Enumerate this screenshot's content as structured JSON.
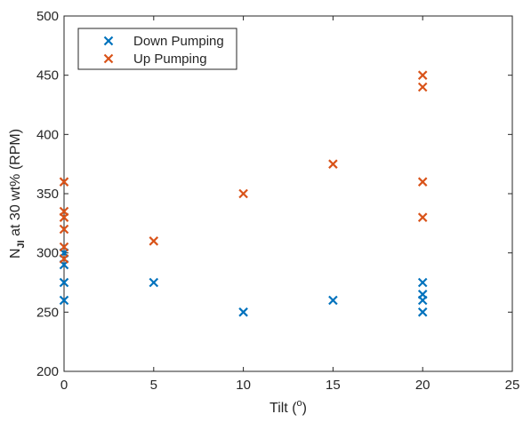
{
  "chart_data": {
    "type": "scatter",
    "title": "",
    "xlabel": "Tilt (°)",
    "ylabel": "N_JI at 30 wt% (RPM)",
    "ylabel_parts": {
      "main": "N",
      "subscript": "JI",
      "rest": " at 30 wt% (RPM)"
    },
    "xlabel_parts": {
      "main": "Tilt (",
      "superscript": "o",
      "rest": ")"
    },
    "xlim": [
      0,
      25
    ],
    "ylim": [
      200,
      500
    ],
    "xticks": [
      0,
      5,
      10,
      15,
      20,
      25
    ],
    "yticks": [
      200,
      250,
      300,
      350,
      400,
      450,
      500
    ],
    "grid": false,
    "legend_position": "top-left",
    "marker": "x",
    "series": [
      {
        "name": "Down Pumping",
        "color": "#0072BD",
        "points": [
          {
            "x": 0,
            "y": 260
          },
          {
            "x": 0,
            "y": 275
          },
          {
            "x": 0,
            "y": 290
          },
          {
            "x": 0,
            "y": 300
          },
          {
            "x": 5,
            "y": 275
          },
          {
            "x": 10,
            "y": 250
          },
          {
            "x": 15,
            "y": 260
          },
          {
            "x": 20,
            "y": 250
          },
          {
            "x": 20,
            "y": 260
          },
          {
            "x": 20,
            "y": 265
          },
          {
            "x": 20,
            "y": 275
          }
        ]
      },
      {
        "name": "Up Pumping",
        "color": "#D95319",
        "points": [
          {
            "x": 0,
            "y": 295
          },
          {
            "x": 0,
            "y": 305
          },
          {
            "x": 0,
            "y": 320
          },
          {
            "x": 0,
            "y": 330
          },
          {
            "x": 0,
            "y": 335
          },
          {
            "x": 0,
            "y": 360
          },
          {
            "x": 5,
            "y": 310
          },
          {
            "x": 10,
            "y": 350
          },
          {
            "x": 15,
            "y": 375
          },
          {
            "x": 20,
            "y": 330
          },
          {
            "x": 20,
            "y": 360
          },
          {
            "x": 20,
            "y": 440
          },
          {
            "x": 20,
            "y": 450
          }
        ]
      }
    ]
  }
}
